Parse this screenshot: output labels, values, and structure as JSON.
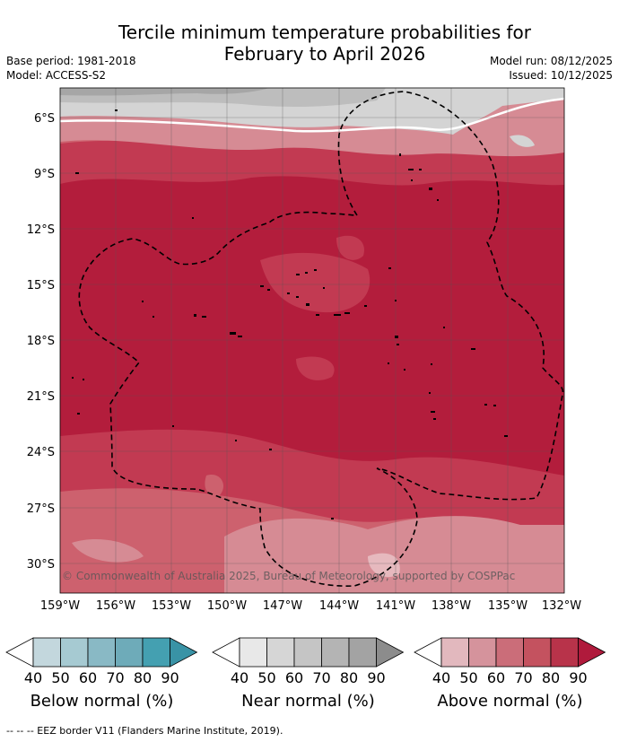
{
  "title_line1": "Tercile minimum temperature probabilities for",
  "title_line2": "February to April 2026",
  "base_period": "Base period: 1981-2018",
  "model": "Model: ACCESS-S2",
  "model_run": "Model run: 08/12/2025",
  "issued": "Issued: 10/12/2025",
  "copyright": "© Commonwealth of Australia 2025, Bureau of Meteorology, supported by COSPPac",
  "footer": "-- -- -- EEZ border V11 (Flanders Marine Institute, 2019).",
  "map": {
    "lon_labels": [
      "159°W",
      "156°W",
      "153°W",
      "150°W",
      "147°W",
      "144°W",
      "141°W",
      "138°W",
      "135°W",
      "132°W"
    ],
    "lat_labels": [
      "6°S",
      "9°S",
      "12°S",
      "15°S",
      "18°S",
      "21°S",
      "24°S",
      "27°S",
      "30°S"
    ],
    "colors": {
      "above_80_90": "#b31d3c",
      "above_70_80": "#c23a52",
      "above_60_70": "#cd616e",
      "above_50_60": "#d68b94",
      "above_40_50": "#e6b9be",
      "near_50_60": "#d4d4d4",
      "near_60_70": "#bdbdbd",
      "near_70_80": "#a6a6a6"
    }
  },
  "colorbars": [
    {
      "label": "Below normal (%)",
      "ticks": [
        "40",
        "50",
        "60",
        "70",
        "80",
        "90"
      ],
      "colors": [
        "#ffffff",
        "#c3d7dd",
        "#a6cad2",
        "#89b9c5",
        "#6eabb9",
        "#44a0b1",
        "#3993a6"
      ]
    },
    {
      "label": "Near normal (%)",
      "ticks": [
        "40",
        "50",
        "60",
        "70",
        "80",
        "90"
      ],
      "colors": [
        "#ffffff",
        "#e8e8e8",
        "#d6d6d6",
        "#c5c5c5",
        "#b4b4b4",
        "#a3a3a3",
        "#8c8c8c"
      ]
    },
    {
      "label": "Above normal (%)",
      "ticks": [
        "40",
        "50",
        "60",
        "70",
        "80",
        "90"
      ],
      "colors": [
        "#ffffff",
        "#e2b8be",
        "#d5939c",
        "#cb6d79",
        "#c4525f",
        "#b8334a",
        "#b01a3c"
      ]
    }
  ]
}
